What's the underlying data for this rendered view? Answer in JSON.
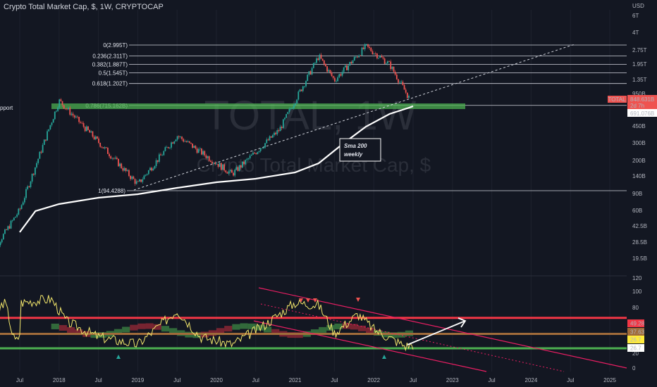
{
  "header": {
    "title": "Crypto Total Market Cap, $, 1W, CRYPTOCAP"
  },
  "watermark": {
    "symbol": "TOTAL, 1W",
    "name": "Crypto Total Market Cap, $"
  },
  "colors": {
    "background": "#131722",
    "up": "#26a69a",
    "down": "#ef5350",
    "support": "#4caf50",
    "resistance": "#f23645",
    "rsi": "#f2e66b",
    "sma": "#ffffff",
    "brown": "#a06b3a"
  },
  "chart_data": [
    {
      "type": "line",
      "title": "Crypto Total Market Cap, $, 1W, CRYPTOCAP",
      "yscale": "log",
      "x_ticks": [
        "Jul",
        "2018",
        "Jul",
        "2019",
        "Jul",
        "2020",
        "Jul",
        "2021",
        "Jul",
        "2022",
        "Jul",
        "2023",
        "Jul",
        "2024",
        "Jul",
        "2025"
      ],
      "y_ticks": [
        "USD",
        "6T",
        "4T",
        "2.75T",
        "1.95T",
        "1.35T",
        "950B",
        "691.076B",
        "450B",
        "300B",
        "200B",
        "140B",
        "90B",
        "60B",
        "42.5B",
        "28.5B",
        "19.5B"
      ],
      "series": [
        {
          "values_approx": [
            [
              2017.1,
              19
            ],
            [
              2017.5,
              60
            ],
            [
              2018.0,
              800
            ],
            [
              2018.5,
              300
            ],
            [
              2019.0,
              110
            ],
            [
              2019.5,
              350
            ],
            [
              2020.2,
              140
            ],
            [
              2020.8,
              400
            ],
            [
              2021.3,
              2300
            ],
            [
              2021.5,
              1300
            ],
            [
              2021.9,
              2900
            ],
            [
              2022.2,
              1900
            ],
            [
              2022.45,
              850
            ]
          ]
        }
      ],
      "sma_label": "Sma 200\nweekly",
      "fib_levels": [
        {
          "label": "0(2.995T)",
          "value": 2995
        },
        {
          "label": "0.236(2.311T)",
          "value": 2311
        },
        {
          "label": "0.382(1.887T)",
          "value": 1887
        },
        {
          "label": "0.5(1.545T)",
          "value": 1545
        },
        {
          "label": "0.618(1.202T)",
          "value": 1202
        },
        {
          "label": "0.786(715.162B)",
          "value": 715.162
        },
        {
          "label": "1(94.4288)",
          "value": 94.4288
        }
      ],
      "support_label": "pport",
      "price_tags": [
        {
          "label": "TOTAL",
          "value": "848.631B",
          "countdown": "2d 7h"
        },
        {
          "value": "691.076B"
        }
      ]
    },
    {
      "type": "line",
      "y_ticks": [
        "120",
        "100",
        "80",
        "60",
        "40",
        "20",
        "0"
      ],
      "horizontal_lines": [
        65,
        44,
        25
      ],
      "tags": [
        "49.28",
        "37.63",
        "26.7",
        "26.7"
      ]
    }
  ]
}
